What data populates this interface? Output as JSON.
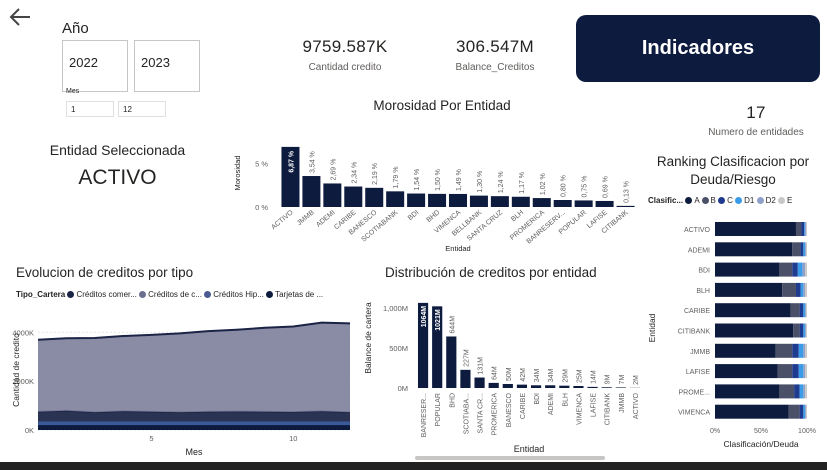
{
  "slicers": {
    "year_label": "Año",
    "year_from": "2022",
    "year_to": "2023",
    "month_label": "Mes",
    "month_from": "1",
    "month_to": "12"
  },
  "kpis": {
    "cantidad_value": "9759.587K",
    "cantidad_label": "Cantidad credito",
    "balance_value": "306.547M",
    "balance_label": "Balance_Creditos",
    "entidades_value": "17",
    "entidades_label": "Numero de entidades"
  },
  "indicadores_button": "Indicadores",
  "entidad": {
    "title": "Entidad Seleccionada",
    "value": "ACTIVO"
  },
  "colors": {
    "navy": "#0d1b3e",
    "dark": "#252d4a",
    "mid": "#5b6178",
    "light": "#8f94a8",
    "blue": "#118dff",
    "lightblue": "#3a9be8",
    "grey": "#c8c8c8"
  },
  "chart_data": [
    {
      "id": "morosidad",
      "type": "bar",
      "title": "Morosidad Por Entidad",
      "xlabel": "Entidad",
      "ylabel": "Morosidad",
      "yticks": [
        "0 %",
        "5 %"
      ],
      "ylim": [
        0,
        8
      ],
      "categories": [
        "ACTIVO",
        "JMMB",
        "ADEMI",
        "CARIBE",
        "BANESCO",
        "SCOTIABANK",
        "BDI",
        "BHD",
        "VIMENCA",
        "BELLBANK",
        "SANTA CRUZ",
        "BLH",
        "PROMERICA",
        "BANRESERV...",
        "POPULAR",
        "LAFISE",
        "CITIBANK"
      ],
      "values": [
        6.87,
        3.54,
        2.69,
        2.34,
        2.19,
        1.79,
        1.54,
        1.5,
        1.49,
        1.3,
        1.24,
        1.17,
        1.02,
        0.8,
        0.75,
        0.69,
        0.13
      ],
      "labels": [
        "6,87 %",
        "3,54 %",
        "2,69 %",
        "2,34 %",
        "2,19 %",
        "1,79 %",
        "1,54 %",
        "1,50 %",
        "1,49 %",
        "1,30 %",
        "1,24 %",
        "1,17 %",
        "1,02 %",
        "0,80 %",
        "0,75 %",
        "0,69 %",
        "0,13 %"
      ]
    },
    {
      "id": "evolucion",
      "type": "area",
      "title": "Evolucion de creditos por tipo",
      "legend_title": "Tipo_Cartera",
      "legend": [
        "Créditos comer...",
        "Créditos de c...",
        "Créditos Hip...",
        "Tarjetas de ..."
      ],
      "xlabel": "Mes",
      "ylabel": "Cantidad de credito",
      "xticks": [
        5,
        10
      ],
      "xlim": [
        1,
        12
      ],
      "yticks": [
        "0K",
        "2000K",
        "4000K"
      ],
      "ylim": [
        0,
        5000
      ],
      "x": [
        1,
        2,
        3,
        4,
        5,
        6,
        7,
        8,
        9,
        10,
        11,
        12
      ],
      "series": [
        {
          "name": "Tarjetas de ...",
          "values": [
            200,
            200,
            200,
            200,
            200,
            200,
            200,
            200,
            200,
            200,
            200,
            200
          ]
        },
        {
          "name": "Créditos Hip...",
          "values": [
            150,
            150,
            150,
            150,
            150,
            150,
            150,
            150,
            150,
            150,
            150,
            150
          ]
        },
        {
          "name": "Créditos comer...",
          "values": [
            400,
            440,
            380,
            420,
            400,
            380,
            400,
            410,
            400,
            390,
            420,
            380
          ]
        },
        {
          "name": "Créditos de c...",
          "values": [
            2950,
            2970,
            3040,
            3080,
            3150,
            3230,
            3300,
            3350,
            3440,
            3500,
            3630,
            3640
          ]
        }
      ]
    },
    {
      "id": "distribucion",
      "type": "bar",
      "title": "Distribución de creditos por entidad",
      "xlabel": "Entidad",
      "ylabel": "Balance de cartera",
      "yticks": [
        "0M",
        "500M",
        "1,000M"
      ],
      "ylim": [
        0,
        1100
      ],
      "categories": [
        "BANRESER...",
        "POPULAR",
        "BHD",
        "SCOTIABA...",
        "SANTA CR...",
        "PROMERICA",
        "BANESCO",
        "CARIBE",
        "BDI",
        "ADEMI",
        "BLH",
        "VIMENCA",
        "LAFISE",
        "CITIBANK",
        "JMMB",
        "ACTIVO"
      ],
      "values": [
        1064,
        1021,
        644,
        227,
        131,
        64,
        50,
        42,
        34,
        34,
        29,
        25,
        14,
        9,
        7,
        2
      ],
      "labels": [
        "1064M",
        "1021M",
        "644M",
        "227M",
        "131M",
        "64M",
        "50M",
        "42M",
        "34M",
        "34M",
        "29M",
        "25M",
        "14M",
        "9M",
        "7M",
        "2M"
      ]
    },
    {
      "id": "ranking",
      "type": "bar",
      "orientation": "horizontal-stacked-100",
      "title": "Ranking Clasificacion por Deuda/Riesgo",
      "legend_title": "Clasific...",
      "legend": [
        "A",
        "B",
        "C",
        "D1",
        "D2",
        "E"
      ],
      "xlabel": "Clasificación/Deuda",
      "ylabel": "Entidad",
      "xticks": [
        "0%",
        "50%",
        "100%"
      ],
      "categories": [
        "ACTIVO",
        "ADEMI",
        "BDI",
        "BLH",
        "CARIBE",
        "CITIBANK",
        "JMMB",
        "LAFISE",
        "PROME...",
        "VIMENCA"
      ],
      "series": [
        {
          "name": "A",
          "values": [
            88,
            84,
            70,
            73,
            82,
            85,
            66,
            68,
            70,
            80
          ]
        },
        {
          "name": "B",
          "values": [
            6,
            9,
            14,
            15,
            10,
            7,
            18,
            16,
            16,
            12
          ]
        },
        {
          "name": "C",
          "values": [
            3,
            3,
            6,
            5,
            4,
            4,
            7,
            7,
            6,
            4
          ]
        },
        {
          "name": "D1",
          "values": [
            1,
            2,
            5,
            3,
            2,
            2,
            5,
            5,
            4,
            2
          ]
        },
        {
          "name": "D2",
          "values": [
            1,
            1,
            3,
            2,
            1,
            1,
            2,
            2,
            2,
            1
          ]
        },
        {
          "name": "E",
          "values": [
            1,
            1,
            2,
            2,
            1,
            1,
            2,
            2,
            2,
            1
          ]
        }
      ]
    }
  ]
}
